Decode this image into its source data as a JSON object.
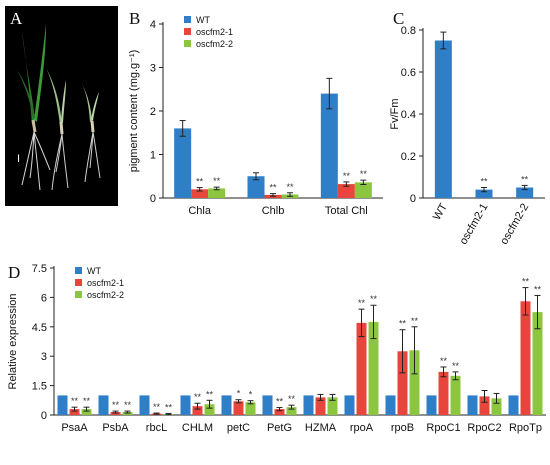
{
  "panel_labels": [
    "A",
    "B",
    "C",
    "D"
  ],
  "colors": {
    "WT": "#2e7ec8",
    "oscfm2-1": "#e8453c",
    "oscfm2-2": "#8cc63f"
  },
  "photo": {
    "scale_bar_label": "I",
    "background": "#000000"
  },
  "chart_data": [
    {
      "id": "B",
      "type": "bar",
      "ylabel": "pigment content (mg.g⁻¹)",
      "xlabel": "",
      "ylim": [
        0,
        4
      ],
      "yticks": [
        "0",
        "1",
        "2",
        "3",
        "4"
      ],
      "categories": [
        "Chla",
        "Chlb",
        "Total Chl"
      ],
      "legend": [
        "WT",
        "oscfm2-1",
        "oscfm2-2"
      ],
      "legend_position": "top-left",
      "series": [
        {
          "name": "WT",
          "values": [
            1.6,
            0.5,
            2.4
          ],
          "errors": [
            0.18,
            0.08,
            0.35
          ]
        },
        {
          "name": "oscfm2-1",
          "values": [
            0.2,
            0.07,
            0.32
          ],
          "errors": [
            0.04,
            0.03,
            0.05
          ]
        },
        {
          "name": "oscfm2-2",
          "values": [
            0.22,
            0.08,
            0.36
          ],
          "errors": [
            0.03,
            0.04,
            0.05
          ]
        }
      ],
      "significance": "**"
    },
    {
      "id": "C",
      "type": "bar",
      "ylabel": "Fv/Fm",
      "xlabel": "",
      "ylim": [
        0,
        0.8
      ],
      "yticks": [
        "0",
        "0.2",
        "0.4",
        "0.6",
        "0.8"
      ],
      "categories": [
        "WT",
        "oscfm2-1",
        "oscfm2-2"
      ],
      "series": [
        {
          "name": "Fv/Fm",
          "values": [
            0.75,
            0.04,
            0.05
          ],
          "errors": [
            0.04,
            0.01,
            0.01
          ]
        }
      ],
      "significance": "**"
    },
    {
      "id": "D",
      "type": "bar",
      "ylabel": "Relative expression",
      "xlabel": "",
      "ylim": [
        0,
        7.5
      ],
      "yticks": [
        "0",
        "1.5",
        "3",
        "4.5",
        "6",
        "7.5"
      ],
      "categories": [
        "PsaA",
        "PsbA",
        "rbcL",
        "CHLM",
        "petC",
        "PetG",
        "HZMA",
        "rpoA",
        "rpoB",
        "RpoC1",
        "RpoC2",
        "RpoTp"
      ],
      "legend": [
        "WT",
        "oscfm2-1",
        "oscfm2-2"
      ],
      "legend_position": "top-left",
      "series": [
        {
          "name": "WT",
          "values": [
            1,
            1,
            1,
            1,
            1,
            1,
            1,
            1,
            1,
            1,
            1,
            1
          ],
          "errors": [
            0,
            0,
            0,
            0,
            0,
            0,
            0,
            0,
            0,
            0,
            0,
            0
          ]
        },
        {
          "name": "oscfm2-1",
          "values": [
            0.3,
            0.15,
            0.07,
            0.45,
            0.7,
            0.3,
            0.9,
            4.7,
            3.25,
            2.2,
            0.95,
            5.8
          ],
          "errors": [
            0.1,
            0.05,
            0.03,
            0.15,
            0.08,
            0.08,
            0.15,
            0.7,
            1.1,
            0.25,
            0.3,
            0.7
          ]
        },
        {
          "name": "oscfm2-2",
          "values": [
            0.3,
            0.15,
            0.05,
            0.55,
            0.65,
            0.4,
            0.9,
            4.75,
            3.3,
            2.0,
            0.85,
            5.25
          ],
          "errors": [
            0.1,
            0.05,
            0.03,
            0.2,
            0.08,
            0.1,
            0.15,
            0.85,
            1.2,
            0.2,
            0.25,
            0.85
          ]
        }
      ],
      "significance_labels": [
        "**",
        "**",
        "**",
        "**",
        "*",
        "**",
        "",
        "**",
        "**",
        "**",
        "",
        "**"
      ]
    }
  ]
}
